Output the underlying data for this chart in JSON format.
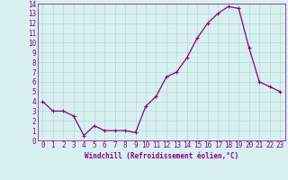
{
  "x": [
    0,
    1,
    2,
    3,
    4,
    5,
    6,
    7,
    8,
    9,
    10,
    11,
    12,
    13,
    14,
    15,
    16,
    17,
    18,
    19,
    20,
    21,
    22,
    23
  ],
  "y": [
    4,
    3,
    3,
    2.5,
    0.5,
    1.5,
    1,
    1,
    1,
    0.8,
    3.5,
    4.5,
    6.5,
    7,
    8.5,
    10.5,
    12,
    13,
    13.7,
    13.5,
    9.5,
    6,
    5.5,
    5
  ],
  "line_color": "#880088",
  "marker": "+",
  "marker_size": 3,
  "marker_linewidth": 0.8,
  "line_width": 0.9,
  "bg_color": "#d8f0f0",
  "grid_color": "#b8d8d8",
  "xlabel": "Windchill (Refroidissement éolien,°C)",
  "xlabel_fontsize": 5.5,
  "tick_fontsize": 5.5,
  "ylim": [
    0,
    14
  ],
  "xlim": [
    -0.5,
    23.5
  ],
  "yticks": [
    0,
    1,
    2,
    3,
    4,
    5,
    6,
    7,
    8,
    9,
    10,
    11,
    12,
    13,
    14
  ],
  "xticks": [
    0,
    1,
    2,
    3,
    4,
    5,
    6,
    7,
    8,
    9,
    10,
    11,
    12,
    13,
    14,
    15,
    16,
    17,
    18,
    19,
    20,
    21,
    22,
    23
  ]
}
